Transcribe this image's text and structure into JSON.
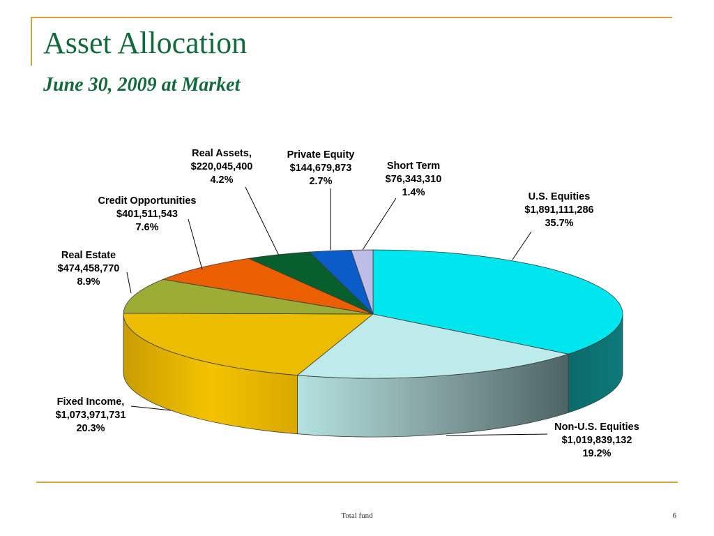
{
  "slide": {
    "title": "Asset Allocation",
    "subtitle": "June 30, 2009 at Market",
    "footer_text": "Total fund",
    "page_number": "6"
  },
  "colors": {
    "accent_rule": "#d3a33a",
    "title_color": "#146a3c"
  },
  "chart_data": {
    "type": "pie",
    "style": "3d exploded-style perspective pie",
    "title": "",
    "categories": [
      "U.S. Equities",
      "Non-U.S. Equities",
      "Fixed Income,",
      "Real Estate",
      "Credit Opportunities",
      "Real Assets,",
      "Private Equity",
      "Short Term"
    ],
    "slices": [
      {
        "label": "U.S. Equities",
        "amount": "$1,891,111,286",
        "percent_label": "35.7%",
        "value": 35.7,
        "color": "#00e6ef",
        "side_color": "#0a6e6e"
      },
      {
        "label": "Non-U.S. Equities",
        "amount": "$1,019,839,132",
        "percent_label": "19.2%",
        "value": 19.2,
        "color": "#bdebeb",
        "side_color": "#5e7676"
      },
      {
        "label": "Fixed Income,",
        "amount": "$1,073,971,731",
        "percent_label": "20.3%",
        "value": 20.3,
        "color": "#ecbc00",
        "side_color": "#c89a00"
      },
      {
        "label": "Real Estate",
        "amount": "$474,458,770",
        "percent_label": "8.9%",
        "value": 8.9,
        "color": "#9bad35",
        "side_color": "#6f7d22"
      },
      {
        "label": "Credit Opportunities",
        "amount": "$401,511,543",
        "percent_label": "7.6%",
        "value": 7.6,
        "color": "#ec5f00",
        "side_color": "#a84300"
      },
      {
        "label": "Real Assets,",
        "amount": "$220,045,400",
        "percent_label": "4.2%",
        "value": 4.2,
        "color": "#065f2c",
        "side_color": "#033d1b"
      },
      {
        "label": "Private Equity",
        "amount": "$144,679,873",
        "percent_label": "2.7%",
        "value": 2.7,
        "color": "#0b5cc8",
        "side_color": "#073c85"
      },
      {
        "label": "Short Term",
        "amount": "$76,343,310",
        "percent_label": "1.4%",
        "value": 1.4,
        "color": "#bdbde8",
        "side_color": "#8a8ab8"
      }
    ]
  }
}
